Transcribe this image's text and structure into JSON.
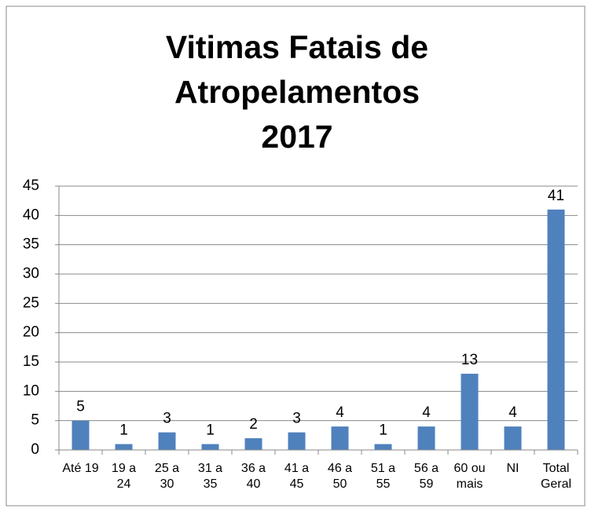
{
  "chart_data": {
    "type": "bar",
    "title": [
      "Vitimas Fatais de",
      "Atropelamentos",
      "2017"
    ],
    "categories": [
      "Até 19",
      "19 a 24",
      "25 a 30",
      "31 a 35",
      "36 a 40",
      "41 a 45",
      "46 a 50",
      "51 a 55",
      "56 a 59",
      "60 ou mais",
      "NI",
      "Total Geral"
    ],
    "values": [
      5,
      1,
      3,
      1,
      2,
      3,
      4,
      1,
      4,
      13,
      4,
      41
    ],
    "color": "#4f81bd",
    "ylim": [
      0,
      45
    ],
    "yticks": [
      0,
      5,
      10,
      15,
      20,
      25,
      30,
      35,
      40,
      45
    ],
    "grid": true
  }
}
